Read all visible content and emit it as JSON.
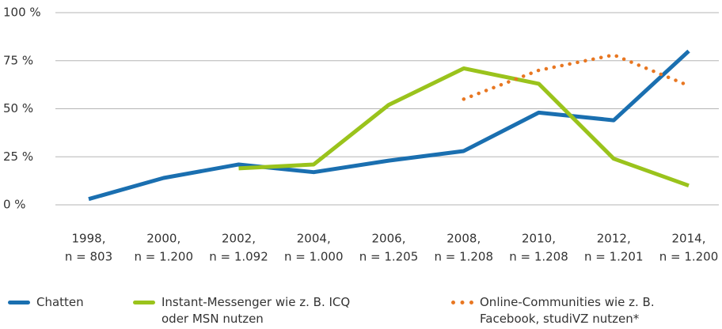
{
  "chart_data": {
    "type": "line",
    "categories": [
      [
        "1998,",
        "n = 803"
      ],
      [
        "2000,",
        "n = 1.200"
      ],
      [
        "2002,",
        "n = 1.092"
      ],
      [
        "2004,",
        "n = 1.000"
      ],
      [
        "2006,",
        "n = 1.205"
      ],
      [
        "2008,",
        "n = 1.208"
      ],
      [
        "2010,",
        "n = 1.208"
      ],
      [
        "2012,",
        "n = 1.201"
      ],
      [
        "2014,",
        "n = 1.200"
      ]
    ],
    "series": [
      {
        "name": "Chatten",
        "color": "#1a6fb0",
        "style": "solid",
        "values": [
          3,
          14,
          21,
          17,
          23,
          28,
          48,
          44,
          80
        ]
      },
      {
        "name": "Instant-Messenger wie z. B. ICQ oder MSN nutzen",
        "color": "#9ac31c",
        "style": "solid",
        "values": [
          null,
          null,
          19,
          21,
          52,
          71,
          63,
          24,
          10
        ]
      },
      {
        "name": "Online-Communities wie z. B. Facebook, studiVZ nutzen*",
        "color": "#e87722",
        "style": "dotted",
        "values": [
          null,
          null,
          null,
          null,
          null,
          55,
          70,
          78,
          62
        ]
      }
    ],
    "ylim": [
      0,
      100
    ],
    "yticks": [
      {
        "value": 0,
        "label": "0 %"
      },
      {
        "value": 25,
        "label": "25 %"
      },
      {
        "value": 50,
        "label": "50 %"
      },
      {
        "value": 75,
        "label": "75 %"
      },
      {
        "value": 100,
        "label": "100 %"
      }
    ],
    "grid": true
  }
}
